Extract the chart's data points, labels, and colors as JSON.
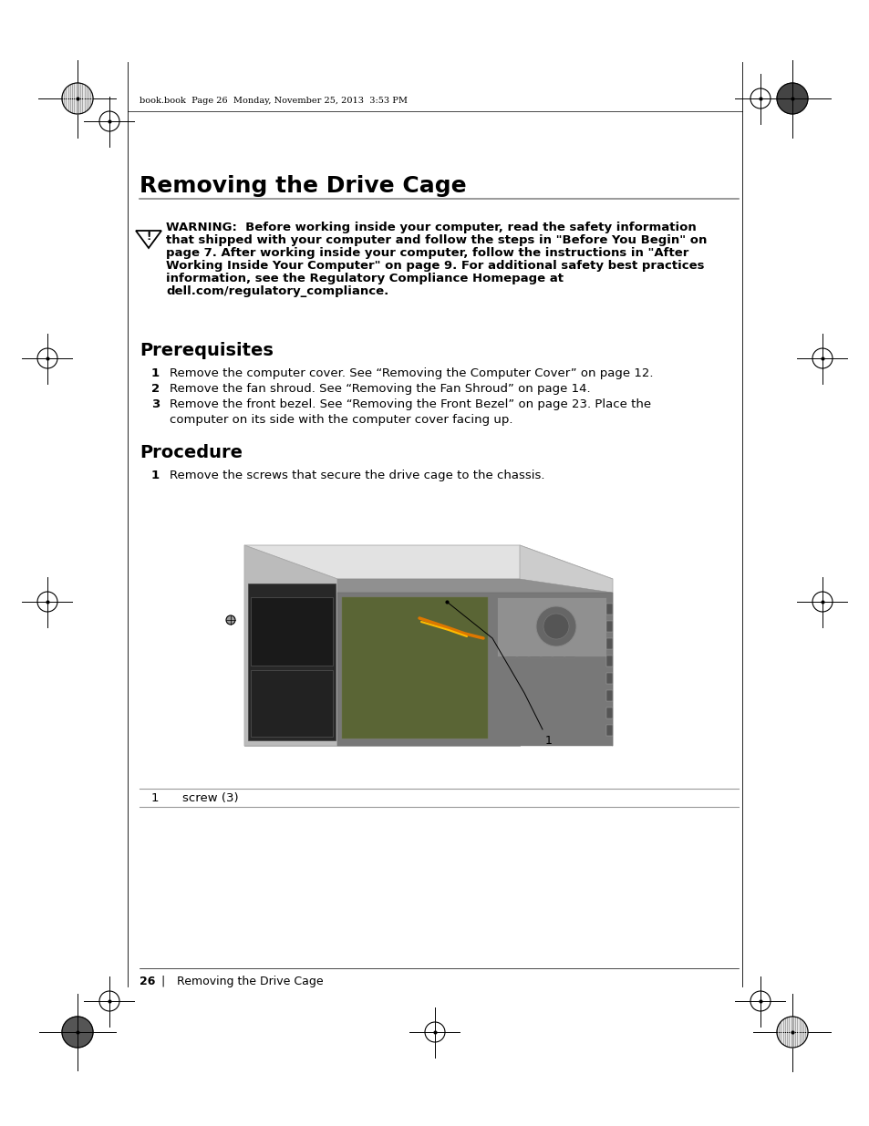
{
  "page_title": "Removing the Drive Cage",
  "header_text": "book.book  Page 26  Monday, November 25, 2013  3:53 PM",
  "warning_lines": [
    "WARNING:  Before working inside your computer, read the safety information",
    "that shipped with your computer and follow the steps in \"Before You Begin\" on",
    "page 7. After working inside your computer, follow the instructions in \"After",
    "Working Inside Your Computer\" on page 9. For additional safety best practices",
    "information, see the Regulatory Compliance Homepage at",
    "dell.com/regulatory_compliance."
  ],
  "prerequisites_title": "Prerequisites",
  "prereq_items": [
    [
      "1",
      "Remove the computer cover. See “Removing the Computer Cover” on page 12."
    ],
    [
      "2",
      "Remove the fan shroud. See “Removing the Fan Shroud” on page 14."
    ],
    [
      "3",
      "Remove the front bezel. See “Removing the Front Bezel” on page 23. Place the"
    ],
    [
      "",
      "computer on its side with the computer cover facing up."
    ]
  ],
  "procedure_title": "Procedure",
  "proc_items": [
    [
      "1",
      "Remove the screws that secure the drive cage to the chassis."
    ]
  ],
  "caption_number": "1",
  "caption_text": "screw (3)",
  "footer_page": "26",
  "footer_text": "Removing the Drive Cage",
  "bg_color": "#ffffff",
  "title_font_size": 18,
  "section_font_size": 14,
  "body_font_size": 9.5,
  "header_font_size": 7,
  "footer_font_size": 9
}
